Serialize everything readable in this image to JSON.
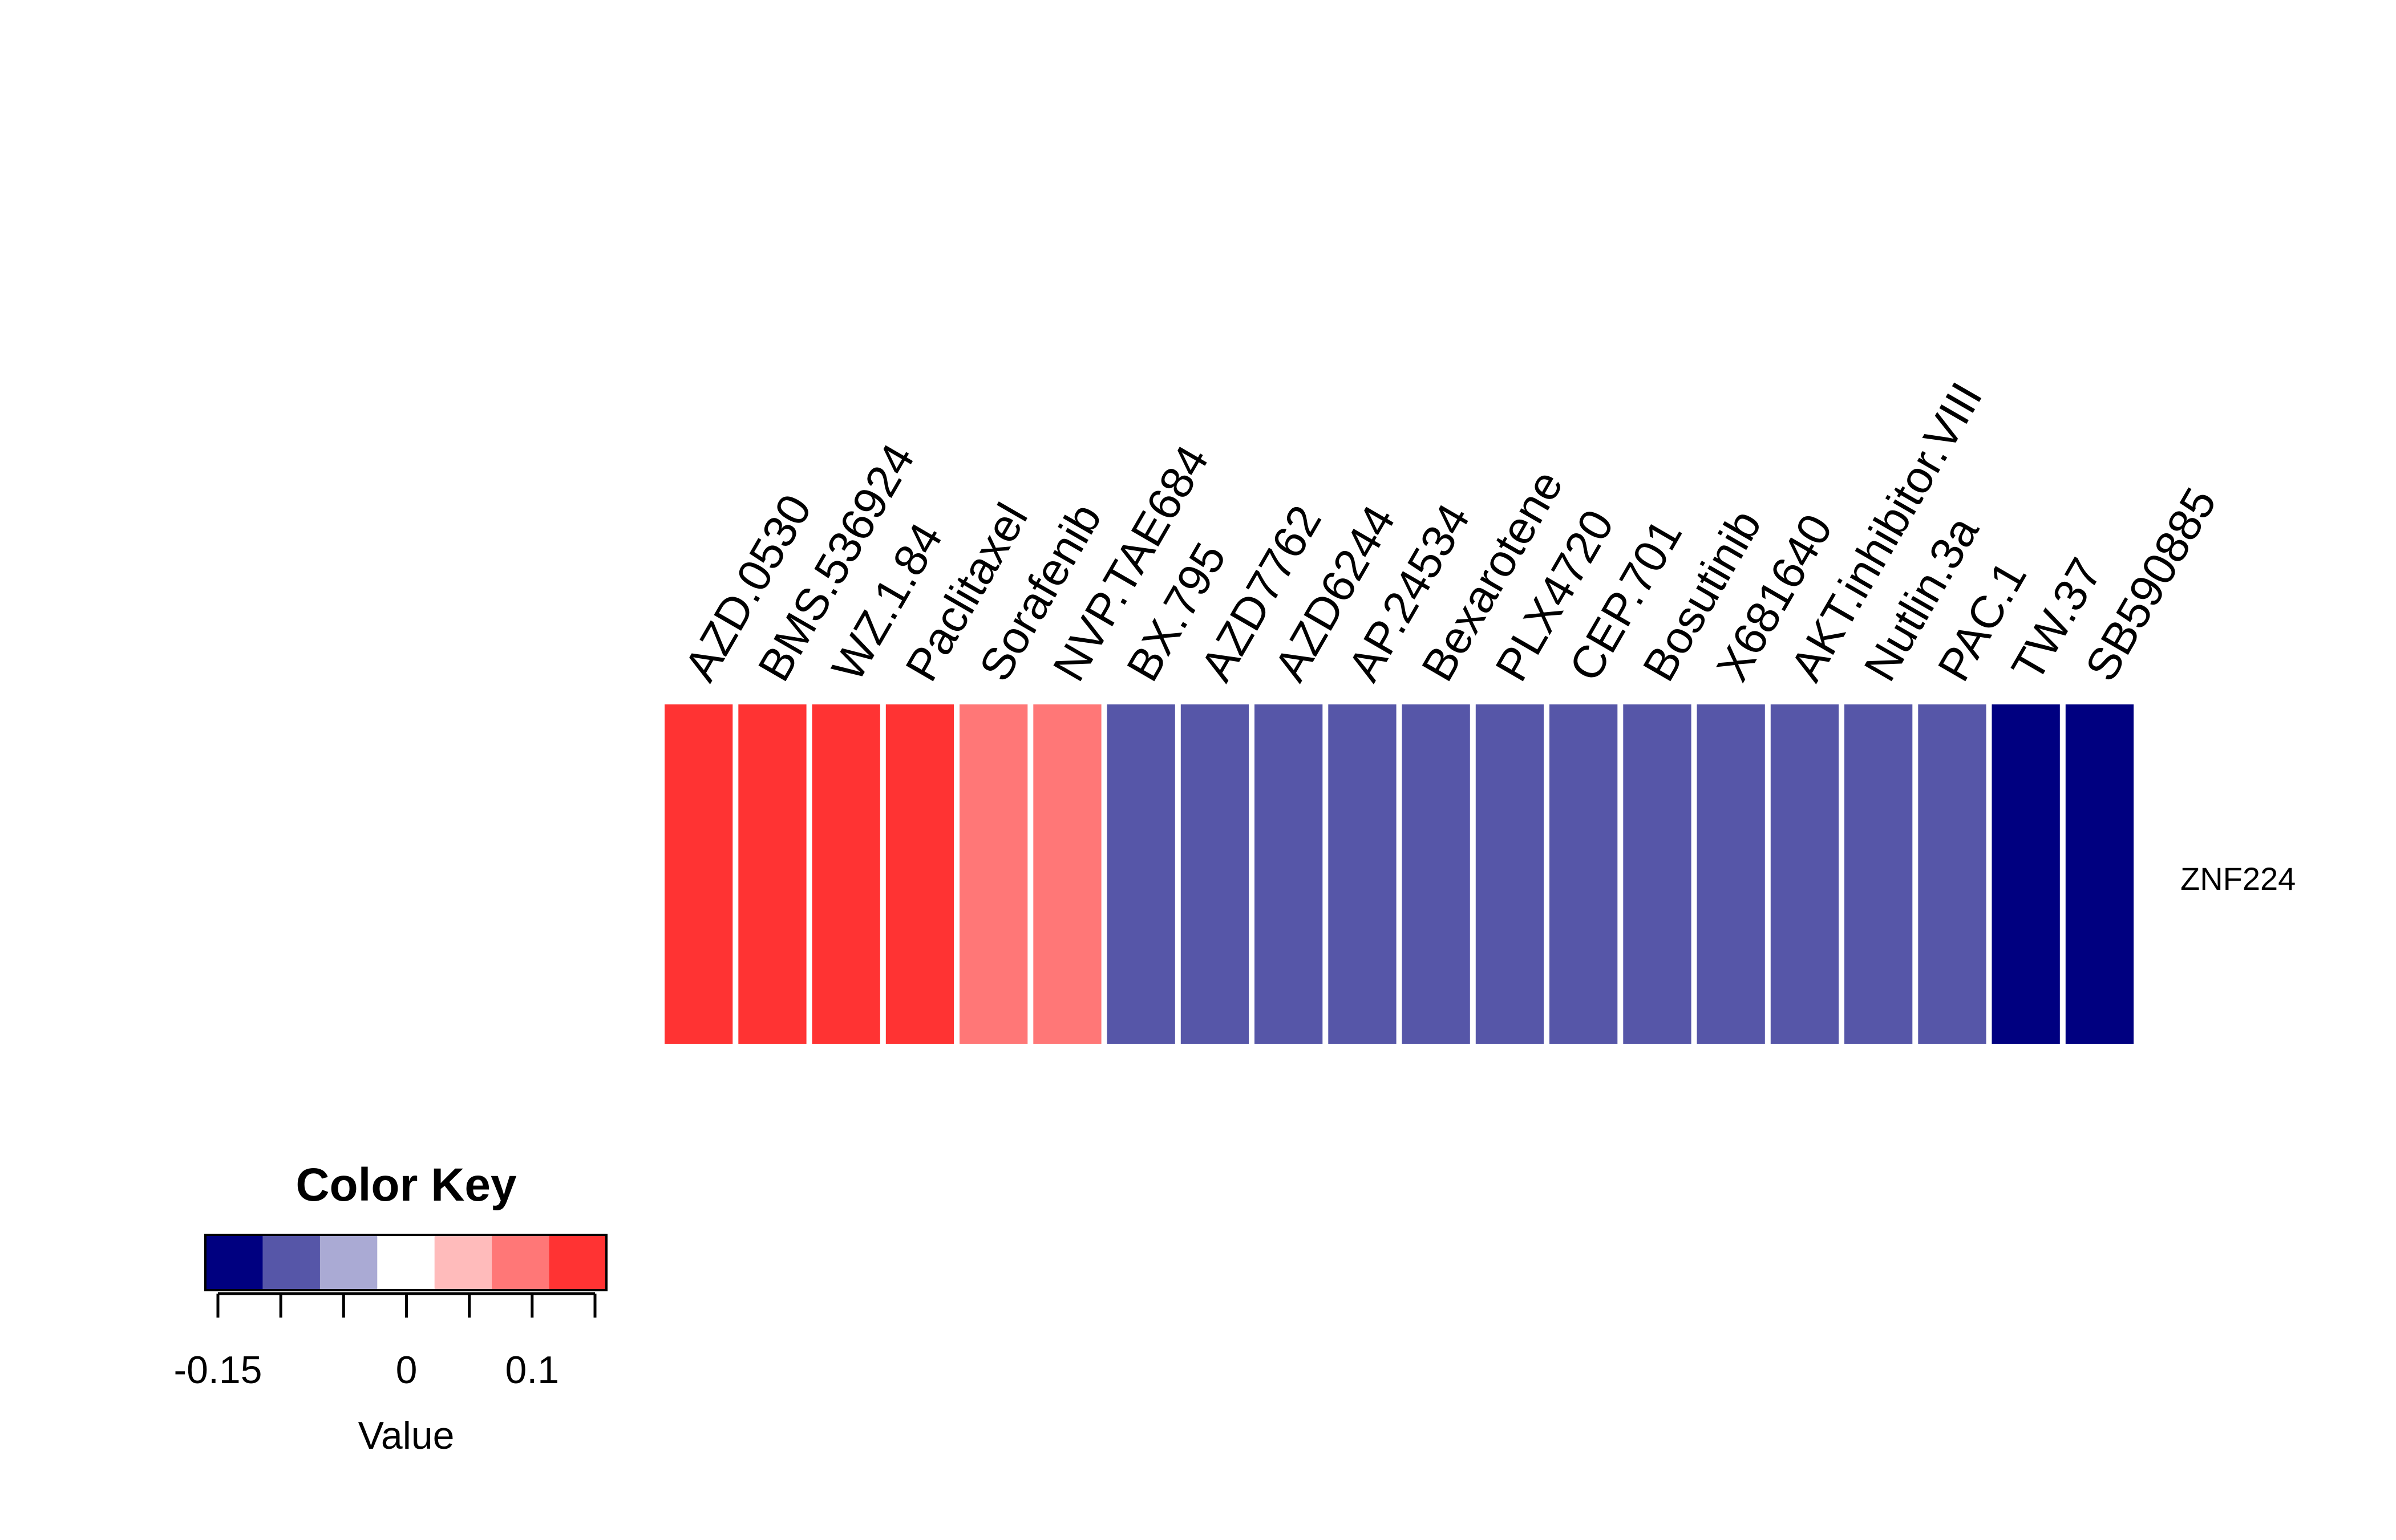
{
  "chart_data": {
    "type": "heatmap",
    "title": "",
    "rows": [
      "ZNF224"
    ],
    "columns": [
      "AZD.0530",
      "BMS.536924",
      "WZ.1.84",
      "Paclitaxel",
      "Sorafenib",
      "NVP.TAE684",
      "BX.795",
      "AZD7762",
      "AZD6244",
      "AP.24534",
      "Bexarotene",
      "PLX4720",
      "CEP.701",
      "Bosutinib",
      "X681640",
      "AKT.inhibitor.VIII",
      "Nutlin.3a",
      "PAC.1",
      "TW.37",
      "SB590885"
    ],
    "values": [
      [
        0.13,
        0.13,
        0.13,
        0.13,
        0.08,
        0.08,
        -0.1,
        -0.1,
        -0.1,
        -0.1,
        -0.1,
        -0.1,
        -0.1,
        -0.1,
        -0.1,
        -0.1,
        -0.1,
        -0.1,
        -0.15,
        -0.15
      ]
    ],
    "colorscale": [
      "#000080",
      "#5656a8",
      "#aaaad4",
      "#ffffff",
      "#ffbbbb",
      "#ff7777",
      "#ff3333"
    ],
    "color_key": {
      "title": "Color Key",
      "xlabel": "Value",
      "range": [
        -0.15,
        0.15
      ],
      "ticks": [
        -0.15,
        -0.1,
        -0.05,
        0,
        0.05,
        0.1,
        0.15
      ],
      "tick_labels": [
        "-0.15",
        "0",
        "0.1"
      ]
    }
  }
}
